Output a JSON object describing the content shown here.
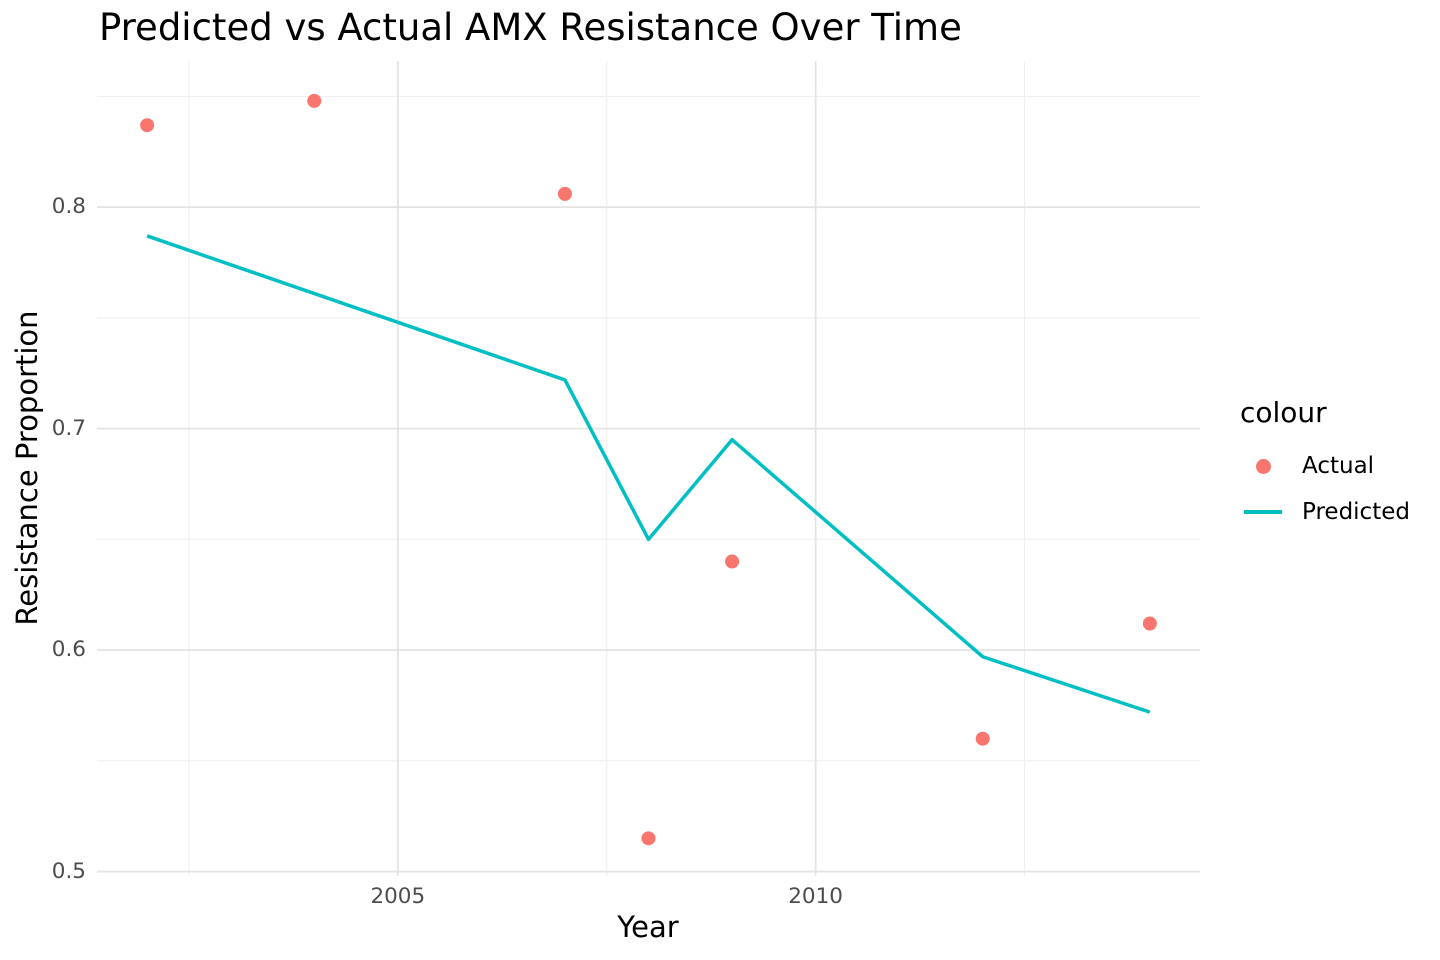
{
  "title": "Predicted vs Actual AMX Resistance Over Time",
  "legend": {
    "title": "colour",
    "items": [
      {
        "label": "Actual",
        "glyph": "point",
        "color": "#F8766D"
      },
      {
        "label": "Predicted",
        "glyph": "line",
        "color": "#00BFC4"
      }
    ]
  },
  "colors": {
    "actual": "#F8766D",
    "predicted": "#00BFC4",
    "grid_major": "#e4e4e4",
    "grid_minor": "#efefef",
    "tick_text": "#4d4d4d",
    "text": "#000000",
    "background": "#ffffff"
  },
  "chart_data": {
    "type": "line+scatter",
    "title": "Predicted vs Actual AMX Resistance Over Time",
    "xlabel": "Year",
    "ylabel": "Resistance Proportion",
    "xlim": [
      2001.4,
      2014.6
    ],
    "ylim": [
      0.498,
      0.866
    ],
    "grid": "on",
    "legend_position": "right",
    "x_ticks": [
      {
        "value": 2005,
        "label": "2005"
      },
      {
        "value": 2010,
        "label": "2010"
      }
    ],
    "y_ticks": [
      {
        "value": 0.5,
        "label": "0.5"
      },
      {
        "value": 0.6,
        "label": "0.6"
      },
      {
        "value": 0.7,
        "label": "0.7"
      },
      {
        "value": 0.8,
        "label": "0.8"
      }
    ],
    "x_minor_gridlines": [
      2002.5,
      2007.5,
      2012.5
    ],
    "y_minor_gridlines": [
      0.55,
      0.65,
      0.75,
      0.85
    ],
    "series": [
      {
        "name": "Actual",
        "type": "scatter",
        "color": "#F8766D",
        "points": [
          [
            2002,
            0.837
          ],
          [
            2004,
            0.848
          ],
          [
            2007,
            0.806
          ],
          [
            2008,
            0.515
          ],
          [
            2009,
            0.64
          ],
          [
            2012,
            0.56
          ],
          [
            2014,
            0.612
          ]
        ]
      },
      {
        "name": "Predicted",
        "type": "line",
        "color": "#00BFC4",
        "points": [
          [
            2002,
            0.787
          ],
          [
            2007,
            0.722
          ],
          [
            2008,
            0.65
          ],
          [
            2009,
            0.695
          ],
          [
            2012,
            0.597
          ],
          [
            2014,
            0.572
          ]
        ]
      }
    ]
  }
}
